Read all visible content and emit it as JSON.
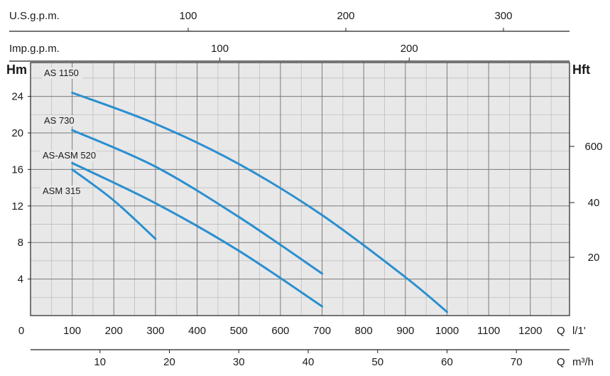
{
  "chart_data": {
    "type": "line",
    "title": "",
    "axes": {
      "bottom_flow": {
        "label": "Q l/1'",
        "unit_q": "Q",
        "unit": "l/1'",
        "ticks": [
          "0",
          "100",
          "200",
          "300",
          "400",
          "500",
          "600",
          "700",
          "800",
          "900",
          "1000",
          "1100",
          "1200"
        ],
        "range": [
          0,
          1200
        ]
      },
      "bottom_m3h": {
        "label": "Q m³/h",
        "unit_q": "Q",
        "unit": "m³/h",
        "ticks": [
          "10",
          "20",
          "30",
          "40",
          "50",
          "60",
          "70"
        ]
      },
      "top_usgpm": {
        "label": "U.S.g.p.m.",
        "ticks": [
          "100",
          "200",
          "300"
        ]
      },
      "top_impgpm": {
        "label": "Imp.g.p.m.",
        "ticks": [
          "100",
          "200"
        ]
      },
      "left_head_m": {
        "label": "Hm",
        "ticks": [
          "4",
          "8",
          "12",
          "16",
          "20",
          "24"
        ],
        "range": [
          0,
          27
        ]
      },
      "right_head_ft": {
        "label": "Hft",
        "ticks": [
          "20",
          "40",
          "600"
        ]
      }
    },
    "grid": true,
    "series": [
      {
        "name": "AS 1150",
        "x": [
          100,
          300,
          500,
          700,
          900,
          1000
        ],
        "y": [
          24.4,
          21,
          16.6,
          11,
          4.2,
          0.4
        ]
      },
      {
        "name": "AS 730",
        "x": [
          100,
          300,
          500,
          700
        ],
        "y": [
          20.3,
          16.3,
          10.8,
          4.6
        ]
      },
      {
        "name": "AS-ASM 520",
        "x": [
          100,
          300,
          500,
          700
        ],
        "y": [
          16.7,
          12.3,
          7.1,
          1
        ]
      },
      {
        "name": "ASM 315",
        "x": [
          100,
          200,
          300
        ],
        "y": [
          16,
          12.6,
          8.4
        ]
      }
    ]
  },
  "colors": {
    "curve": "#2a8fd0",
    "grid": "#7a7a7a",
    "background": "#e8e8e8",
    "axis": "#222222"
  }
}
